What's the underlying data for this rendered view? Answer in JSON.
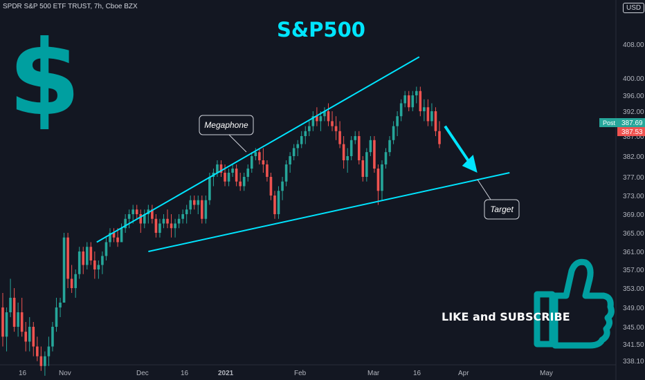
{
  "header": {
    "symbol_line": "SPDR S&P 500 ETF TRUST, 7h, Cboe BZX",
    "currency": "USD"
  },
  "overlay": {
    "title": "S&P500",
    "cta": "LIKE and SUBSCRIBE",
    "callout_megaphone": "Megaphone",
    "callout_target": "Target",
    "dollar_glyph": "$"
  },
  "colors": {
    "background": "#131722",
    "up": "#26a69a",
    "down": "#ef5350",
    "trendline": "#00e5ff",
    "icon": "#009fa0",
    "axis_text": "#b2b5be"
  },
  "chart_data": {
    "type": "candlestick",
    "y_ticks": [
      "338.10",
      "341.50",
      "345.00",
      "349.00",
      "353.00",
      "357.00",
      "361.00",
      "365.00",
      "369.00",
      "373.00",
      "377.00",
      "382.00",
      "387.00",
      "392.00",
      "396.00",
      "400.00",
      "408.00"
    ],
    "x_ticks": [
      "16",
      "Nov",
      "Dec",
      "16",
      "2021",
      "Feb",
      "Mar",
      "16",
      "Apr",
      "May"
    ],
    "price_labels": [
      {
        "label": "Post",
        "value": "387.69",
        "color": "#26a69a"
      },
      {
        "value": "387.53",
        "color": "#ef5350"
      }
    ],
    "candles": [
      {
        "o": 349,
        "h": 352,
        "l": 341,
        "c": 343
      },
      {
        "o": 343,
        "h": 349,
        "l": 340,
        "c": 348
      },
      {
        "o": 348,
        "h": 355,
        "l": 347,
        "c": 351
      },
      {
        "o": 351,
        "h": 353,
        "l": 344,
        "c": 345
      },
      {
        "o": 345,
        "h": 350,
        "l": 343,
        "c": 348
      },
      {
        "o": 348,
        "h": 351,
        "l": 343,
        "c": 344
      },
      {
        "o": 344,
        "h": 346,
        "l": 340,
        "c": 342
      },
      {
        "o": 342,
        "h": 347,
        "l": 340,
        "c": 345
      },
      {
        "o": 345,
        "h": 346,
        "l": 339,
        "c": 341
      },
      {
        "o": 341,
        "h": 343,
        "l": 338,
        "c": 339
      },
      {
        "o": 339,
        "h": 341,
        "l": 336,
        "c": 337
      },
      {
        "o": 337,
        "h": 340,
        "l": 335,
        "c": 339
      },
      {
        "o": 339,
        "h": 343,
        "l": 337,
        "c": 341
      },
      {
        "o": 341,
        "h": 346,
        "l": 340,
        "c": 345
      },
      {
        "o": 345,
        "h": 351,
        "l": 344,
        "c": 349
      },
      {
        "o": 349,
        "h": 351,
        "l": 347,
        "c": 350
      },
      {
        "o": 350,
        "h": 365,
        "l": 350,
        "c": 364
      },
      {
        "o": 364,
        "h": 365,
        "l": 353,
        "c": 355
      },
      {
        "o": 355,
        "h": 358,
        "l": 352,
        "c": 353
      },
      {
        "o": 353,
        "h": 357,
        "l": 351,
        "c": 356
      },
      {
        "o": 356,
        "h": 362,
        "l": 355,
        "c": 361
      },
      {
        "o": 361,
        "h": 362,
        "l": 356,
        "c": 358
      },
      {
        "o": 358,
        "h": 363,
        "l": 357,
        "c": 362
      },
      {
        "o": 362,
        "h": 363,
        "l": 358,
        "c": 359
      },
      {
        "o": 359,
        "h": 361,
        "l": 355,
        "c": 357
      },
      {
        "o": 357,
        "h": 359,
        "l": 355,
        "c": 358
      },
      {
        "o": 358,
        "h": 361,
        "l": 356,
        "c": 360
      },
      {
        "o": 360,
        "h": 364,
        "l": 359,
        "c": 363
      },
      {
        "o": 363,
        "h": 366,
        "l": 362,
        "c": 365
      },
      {
        "o": 365,
        "h": 366,
        "l": 363,
        "c": 364
      },
      {
        "o": 364,
        "h": 366,
        "l": 362,
        "c": 363
      },
      {
        "o": 363,
        "h": 367,
        "l": 363,
        "c": 366
      },
      {
        "o": 366,
        "h": 369,
        "l": 365,
        "c": 368
      },
      {
        "o": 368,
        "h": 370,
        "l": 366,
        "c": 369
      },
      {
        "o": 369,
        "h": 371,
        "l": 367,
        "c": 370
      },
      {
        "o": 370,
        "h": 371,
        "l": 368,
        "c": 369
      },
      {
        "o": 369,
        "h": 370,
        "l": 365,
        "c": 367
      },
      {
        "o": 367,
        "h": 370,
        "l": 366,
        "c": 369
      },
      {
        "o": 369,
        "h": 371,
        "l": 367,
        "c": 370
      },
      {
        "o": 370,
        "h": 371,
        "l": 367,
        "c": 368
      },
      {
        "o": 368,
        "h": 369,
        "l": 364,
        "c": 365
      },
      {
        "o": 365,
        "h": 368,
        "l": 364,
        "c": 367
      },
      {
        "o": 367,
        "h": 369,
        "l": 366,
        "c": 368
      },
      {
        "o": 368,
        "h": 370,
        "l": 366,
        "c": 367
      },
      {
        "o": 367,
        "h": 369,
        "l": 364,
        "c": 366
      },
      {
        "o": 366,
        "h": 368,
        "l": 364,
        "c": 367
      },
      {
        "o": 367,
        "h": 369,
        "l": 366,
        "c": 368
      },
      {
        "o": 368,
        "h": 370,
        "l": 367,
        "c": 369
      },
      {
        "o": 369,
        "h": 371,
        "l": 367,
        "c": 370
      },
      {
        "o": 370,
        "h": 373,
        "l": 369,
        "c": 372
      },
      {
        "o": 372,
        "h": 373,
        "l": 370,
        "c": 371
      },
      {
        "o": 371,
        "h": 373,
        "l": 369,
        "c": 372
      },
      {
        "o": 372,
        "h": 373,
        "l": 367,
        "c": 368
      },
      {
        "o": 368,
        "h": 373,
        "l": 367,
        "c": 372
      },
      {
        "o": 372,
        "h": 378,
        "l": 371,
        "c": 377
      },
      {
        "o": 377,
        "h": 379,
        "l": 375,
        "c": 378
      },
      {
        "o": 378,
        "h": 381,
        "l": 377,
        "c": 380
      },
      {
        "o": 380,
        "h": 381,
        "l": 377,
        "c": 378
      },
      {
        "o": 378,
        "h": 380,
        "l": 375,
        "c": 376
      },
      {
        "o": 376,
        "h": 379,
        "l": 375,
        "c": 378
      },
      {
        "o": 378,
        "h": 380,
        "l": 377,
        "c": 379
      },
      {
        "o": 379,
        "h": 380,
        "l": 375,
        "c": 376
      },
      {
        "o": 376,
        "h": 378,
        "l": 374,
        "c": 375
      },
      {
        "o": 375,
        "h": 378,
        "l": 374,
        "c": 377
      },
      {
        "o": 377,
        "h": 380,
        "l": 376,
        "c": 379
      },
      {
        "o": 379,
        "h": 383,
        "l": 378,
        "c": 382
      },
      {
        "o": 382,
        "h": 384,
        "l": 381,
        "c": 383
      },
      {
        "o": 383,
        "h": 384,
        "l": 380,
        "c": 381
      },
      {
        "o": 381,
        "h": 384,
        "l": 378,
        "c": 380
      },
      {
        "o": 380,
        "h": 381,
        "l": 376,
        "c": 377
      },
      {
        "o": 377,
        "h": 378,
        "l": 372,
        "c": 373
      },
      {
        "o": 373,
        "h": 374,
        "l": 368,
        "c": 369
      },
      {
        "o": 369,
        "h": 375,
        "l": 368,
        "c": 374
      },
      {
        "o": 374,
        "h": 377,
        "l": 372,
        "c": 376
      },
      {
        "o": 376,
        "h": 381,
        "l": 375,
        "c": 380
      },
      {
        "o": 380,
        "h": 383,
        "l": 378,
        "c": 382
      },
      {
        "o": 382,
        "h": 385,
        "l": 381,
        "c": 384
      },
      {
        "o": 384,
        "h": 386,
        "l": 382,
        "c": 385
      },
      {
        "o": 385,
        "h": 388,
        "l": 384,
        "c": 387
      },
      {
        "o": 387,
        "h": 389,
        "l": 385,
        "c": 388
      },
      {
        "o": 388,
        "h": 390,
        "l": 387,
        "c": 389
      },
      {
        "o": 389,
        "h": 392,
        "l": 388,
        "c": 391
      },
      {
        "o": 391,
        "h": 393,
        "l": 389,
        "c": 390
      },
      {
        "o": 390,
        "h": 392,
        "l": 388,
        "c": 391
      },
      {
        "o": 391,
        "h": 393,
        "l": 390,
        "c": 392
      },
      {
        "o": 392,
        "h": 394,
        "l": 389,
        "c": 390
      },
      {
        "o": 390,
        "h": 392,
        "l": 388,
        "c": 389
      },
      {
        "o": 389,
        "h": 391,
        "l": 386,
        "c": 388
      },
      {
        "o": 388,
        "h": 390,
        "l": 384,
        "c": 385
      },
      {
        "o": 385,
        "h": 387,
        "l": 379,
        "c": 381
      },
      {
        "o": 381,
        "h": 384,
        "l": 378,
        "c": 382
      },
      {
        "o": 382,
        "h": 387,
        "l": 381,
        "c": 386
      },
      {
        "o": 386,
        "h": 388,
        "l": 385,
        "c": 387
      },
      {
        "o": 387,
        "h": 388,
        "l": 380,
        "c": 381
      },
      {
        "o": 381,
        "h": 382,
        "l": 376,
        "c": 377
      },
      {
        "o": 377,
        "h": 384,
        "l": 376,
        "c": 383
      },
      {
        "o": 383,
        "h": 387,
        "l": 382,
        "c": 386
      },
      {
        "o": 386,
        "h": 387,
        "l": 378,
        "c": 379
      },
      {
        "o": 379,
        "h": 380,
        "l": 371,
        "c": 374
      },
      {
        "o": 374,
        "h": 381,
        "l": 372,
        "c": 380
      },
      {
        "o": 380,
        "h": 384,
        "l": 379,
        "c": 383
      },
      {
        "o": 383,
        "h": 387,
        "l": 382,
        "c": 386
      },
      {
        "o": 386,
        "h": 390,
        "l": 385,
        "c": 389
      },
      {
        "o": 389,
        "h": 392,
        "l": 387,
        "c": 391
      },
      {
        "o": 391,
        "h": 395,
        "l": 390,
        "c": 394
      },
      {
        "o": 394,
        "h": 397,
        "l": 393,
        "c": 396
      },
      {
        "o": 396,
        "h": 397,
        "l": 392,
        "c": 393
      },
      {
        "o": 393,
        "h": 397,
        "l": 392,
        "c": 396
      },
      {
        "o": 396,
        "h": 398,
        "l": 394,
        "c": 397
      },
      {
        "o": 397,
        "h": 398,
        "l": 391,
        "c": 392
      },
      {
        "o": 392,
        "h": 395,
        "l": 390,
        "c": 393
      },
      {
        "o": 393,
        "h": 395,
        "l": 389,
        "c": 390
      },
      {
        "o": 390,
        "h": 394,
        "l": 389,
        "c": 392
      },
      {
        "o": 392,
        "h": 393,
        "l": 387,
        "c": 388
      },
      {
        "o": 388,
        "h": 390,
        "l": 384,
        "c": 385
      }
    ],
    "trendlines": [
      {
        "name": "upper",
        "x1": 0.15,
        "y1": 363,
        "x2": 0.65,
        "y2": 405
      },
      {
        "name": "lower",
        "x1": 0.23,
        "y1": 361,
        "x2": 0.79,
        "y2": 378
      }
    ],
    "arrow": {
      "x1": 0.69,
      "y1": 389,
      "x2": 0.74,
      "y2": 378
    }
  }
}
